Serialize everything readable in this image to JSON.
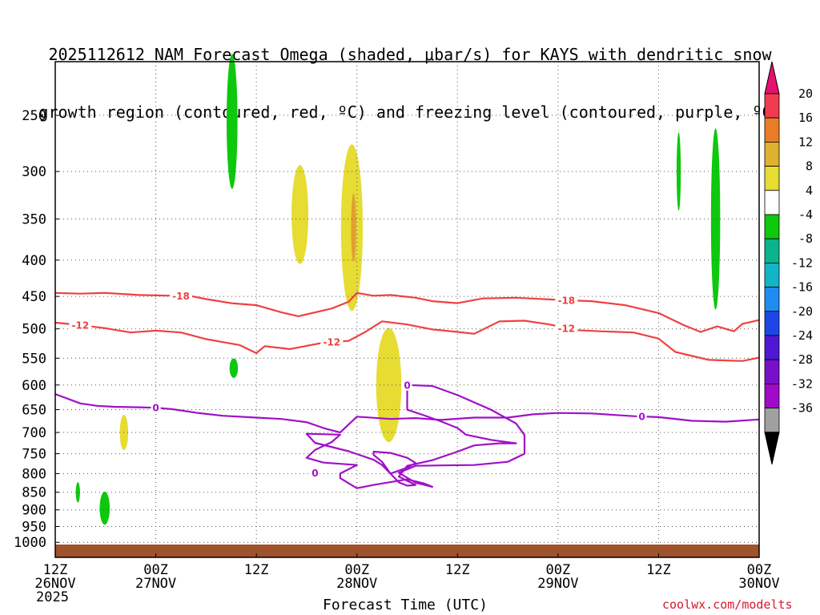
{
  "title_line1": "2025112612 NAM Forecast Omega (shaded, μbar/s) for KAYS with dendritic snow",
  "title_line2": "growth region (contoured, red, ºC) and freezing level (contoured, purple, ºC)",
  "credit": "coolwx.com/modelts",
  "chart_data": {
    "type": "time-height cross section",
    "xlabel": "Forecast Time (UTC)",
    "ylabel": "Pressure (hPa)",
    "x_range_hours": [
      0,
      84
    ],
    "y_range_hpa": [
      1050,
      200
    ],
    "y_ticks": [
      250,
      300,
      350,
      400,
      450,
      500,
      550,
      600,
      650,
      700,
      750,
      800,
      850,
      900,
      950,
      1000
    ],
    "x_ticks": [
      {
        "hour": 0,
        "line1": "12Z",
        "line2": "26NOV",
        "line3": "2025"
      },
      {
        "hour": 12,
        "line1": "00Z",
        "line2": "27NOV",
        "line3": ""
      },
      {
        "hour": 24,
        "line1": "12Z",
        "line2": "",
        "line3": ""
      },
      {
        "hour": 36,
        "line1": "00Z",
        "line2": "28NOV",
        "line3": ""
      },
      {
        "hour": 48,
        "line1": "12Z",
        "line2": "",
        "line3": ""
      },
      {
        "hour": 60,
        "line1": "00Z",
        "line2": "29NOV",
        "line3": ""
      },
      {
        "hour": 72,
        "line1": "12Z",
        "line2": "",
        "line3": ""
      },
      {
        "hour": 84,
        "line1": "00Z",
        "line2": "30NOV",
        "line3": ""
      }
    ],
    "colorbar": {
      "labels": [
        "20",
        "16",
        "12",
        "8",
        "4",
        "-4",
        "-8",
        "-12",
        "-16",
        "-20",
        "-24",
        "-28",
        "-32",
        "-36"
      ],
      "colors": [
        "#f03c50",
        "#e87c28",
        "#e0b030",
        "#e6dc32",
        "#ffffff",
        "#0ec80e",
        "#0cb48c",
        "#14b4c8",
        "#1e8cf0",
        "#1e46e6",
        "#5018d2",
        "#7810c8",
        "#a00ac8",
        "#a0a0a0"
      ],
      "top_arrow_color": "#e6106e",
      "bottom_arrow_color": "#000000"
    },
    "contour_18": {
      "label": "-18",
      "color": "#f04040",
      "points": [
        [
          0,
          445
        ],
        [
          3,
          446
        ],
        [
          6,
          445
        ],
        [
          10,
          448
        ],
        [
          14,
          449
        ],
        [
          16,
          449
        ],
        [
          18,
          454
        ],
        [
          21,
          460
        ],
        [
          24,
          463
        ],
        [
          27,
          474
        ],
        [
          29,
          480
        ],
        [
          32,
          471
        ],
        [
          33,
          468
        ],
        [
          35,
          458
        ],
        [
          36,
          445
        ],
        [
          38,
          449
        ],
        [
          40,
          448
        ],
        [
          43,
          452
        ],
        [
          45,
          457
        ],
        [
          48,
          460
        ],
        [
          51,
          453
        ],
        [
          55,
          452
        ],
        [
          60,
          455
        ],
        [
          64,
          457
        ],
        [
          68,
          463
        ],
        [
          72,
          475
        ],
        [
          75,
          494
        ],
        [
          77,
          505
        ],
        [
          79,
          496
        ],
        [
          81,
          504
        ],
        [
          82,
          492
        ],
        [
          84,
          486
        ]
      ],
      "label_hours": [
        15,
        61
      ]
    },
    "contour_12": {
      "label": "-12",
      "color": "#f04040",
      "points": [
        [
          0,
          490
        ],
        [
          3,
          494
        ],
        [
          6,
          499
        ],
        [
          9,
          506
        ],
        [
          12,
          503
        ],
        [
          15,
          506
        ],
        [
          18,
          517
        ],
        [
          20,
          522
        ],
        [
          22,
          527
        ],
        [
          24,
          541
        ],
        [
          25,
          529
        ],
        [
          28,
          534
        ],
        [
          32,
          523
        ],
        [
          35,
          520
        ],
        [
          37,
          505
        ],
        [
          39,
          488
        ],
        [
          42,
          493
        ],
        [
          45,
          501
        ],
        [
          48,
          505
        ],
        [
          50,
          508
        ],
        [
          53,
          488
        ],
        [
          56,
          487
        ],
        [
          59,
          493
        ],
        [
          62,
          502
        ],
        [
          65,
          504
        ],
        [
          69,
          506
        ],
        [
          72,
          516
        ],
        [
          74,
          539
        ],
        [
          76,
          546
        ],
        [
          78,
          553
        ],
        [
          80,
          554
        ],
        [
          82,
          555
        ],
        [
          84,
          549
        ]
      ],
      "label_hours": [
        3,
        33,
        61
      ]
    },
    "contour_0": {
      "label": "0",
      "color": "#a010c8",
      "main": [
        [
          0,
          618
        ],
        [
          3,
          637
        ],
        [
          5,
          642
        ],
        [
          7,
          644
        ],
        [
          10,
          645
        ],
        [
          12,
          646
        ],
        [
          14,
          649
        ],
        [
          17,
          657
        ],
        [
          20,
          663
        ],
        [
          24,
          667
        ],
        [
          27,
          670
        ],
        [
          30,
          677
        ],
        [
          32,
          690
        ],
        [
          34,
          700
        ],
        [
          36,
          665
        ],
        [
          40,
          670
        ],
        [
          43,
          668
        ],
        [
          46,
          672
        ],
        [
          50,
          667
        ],
        [
          54,
          667
        ],
        [
          57,
          660
        ],
        [
          60,
          657
        ],
        [
          64,
          658
        ],
        [
          69,
          664
        ],
        [
          72,
          666
        ],
        [
          76,
          674
        ],
        [
          80,
          676
        ],
        [
          84,
          671
        ]
      ],
      "main_label_hours": [
        12,
        70
      ],
      "closed": [
        [
          42,
          600
        ],
        [
          45,
          602
        ],
        [
          48,
          620
        ],
        [
          52,
          650
        ],
        [
          55,
          680
        ],
        [
          56,
          706
        ],
        [
          56,
          750
        ],
        [
          54,
          770
        ],
        [
          50,
          778
        ],
        [
          46,
          779
        ],
        [
          43,
          780
        ],
        [
          41,
          798
        ],
        [
          43,
          824
        ],
        [
          45,
          835
        ],
        [
          44,
          826
        ],
        [
          42,
          815
        ],
        [
          38,
          830
        ],
        [
          36,
          839
        ],
        [
          34,
          812
        ],
        [
          34,
          800
        ],
        [
          36,
          778
        ],
        [
          32,
          772
        ],
        [
          30,
          760
        ],
        [
          31,
          741
        ],
        [
          33,
          722
        ],
        [
          34,
          705
        ],
        [
          30,
          703
        ],
        [
          31,
          724
        ],
        [
          35,
          744
        ],
        [
          38,
          765
        ],
        [
          39,
          778
        ],
        [
          40,
          800
        ],
        [
          39,
          770
        ],
        [
          38,
          753
        ],
        [
          38,
          745
        ],
        [
          40,
          748
        ],
        [
          42,
          760
        ],
        [
          43,
          773
        ],
        [
          42,
          785
        ],
        [
          40,
          800
        ],
        [
          41,
          823
        ],
        [
          42,
          832
        ],
        [
          43,
          830
        ],
        [
          41,
          808
        ],
        [
          42,
          780
        ],
        [
          45,
          766
        ],
        [
          48,
          745
        ],
        [
          50,
          730
        ],
        [
          53,
          725
        ],
        [
          55,
          725
        ],
        [
          52,
          717
        ],
        [
          49,
          705
        ],
        [
          48,
          690
        ],
        [
          46,
          675
        ],
        [
          44,
          662
        ],
        [
          42,
          650
        ],
        [
          42,
          610
        ],
        [
          42,
          600
        ]
      ],
      "closed_labels": [
        [
          42,
          600
        ],
        [
          31,
          798
        ]
      ]
    }
  },
  "shading": {
    "yellow_color": "#e6dc32",
    "orange_color": "#e0a030",
    "green_color": "#0ec80e",
    "yellow_blobs": [
      {
        "c": [
          8.2,
          700
        ],
        "rx": 0.5,
        "ry": 40
      },
      {
        "c": [
          29.2,
          345
        ],
        "rx": 1.0,
        "ry": 55
      },
      {
        "c": [
          35.4,
          360
        ],
        "rx": 1.3,
        "ry": 95
      },
      {
        "c": [
          39.8,
          600
        ],
        "rx": 1.5,
        "ry": 110
      }
    ],
    "orange_blobs": [
      {
        "c": [
          35.6,
          360
        ],
        "rx": 0.3,
        "ry": 40
      }
    ],
    "green_blobs": [
      {
        "c": [
          2.7,
          850
        ],
        "rx": 0.25,
        "ry": 28
      },
      {
        "c": [
          5.9,
          895
        ],
        "rx": 0.6,
        "ry": 48
      },
      {
        "c": [
          21.1,
          255
        ],
        "rx": 0.65,
        "ry": 55
      },
      {
        "c": [
          21.3,
          568
        ],
        "rx": 0.5,
        "ry": 18
      },
      {
        "c": [
          74.4,
          300
        ],
        "rx": 0.25,
        "ry": 38
      },
      {
        "c": [
          78.8,
          350
        ],
        "rx": 0.55,
        "ry": 100
      }
    ]
  }
}
